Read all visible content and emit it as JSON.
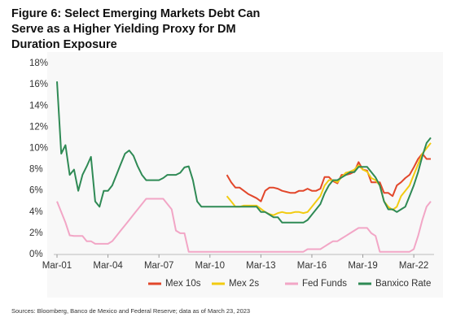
{
  "chart_data": {
    "type": "line",
    "title": "Figure 6: Select Emerging Markets Debt Can Serve as a Higher Yielding Proxy for DM Duration Exposure",
    "source": "Sources: Bloomberg, Banco de Mexico and Federal Reserve; data as of March 23, 2023",
    "x": [
      "Mar-01",
      "Jun-01",
      "Sep-01",
      "Dec-01",
      "Mar-02",
      "Jun-02",
      "Sep-02",
      "Dec-02",
      "Mar-03",
      "Jun-03",
      "Sep-03",
      "Dec-03",
      "Mar-04",
      "Jun-04",
      "Sep-04",
      "Dec-04",
      "Mar-05",
      "Jun-05",
      "Sep-05",
      "Dec-05",
      "Mar-06",
      "Jun-06",
      "Sep-06",
      "Dec-06",
      "Mar-07",
      "Jun-07",
      "Sep-07",
      "Dec-07",
      "Mar-08",
      "Jun-08",
      "Sep-08",
      "Dec-08",
      "Mar-09",
      "Jun-09",
      "Sep-09",
      "Dec-09",
      "Mar-10",
      "Jun-10",
      "Sep-10",
      "Dec-10",
      "Mar-11",
      "Jun-11",
      "Sep-11",
      "Dec-11",
      "Mar-12",
      "Jun-12",
      "Sep-12",
      "Dec-12",
      "Mar-13",
      "Jun-13",
      "Sep-13",
      "Dec-13",
      "Mar-14",
      "Jun-14",
      "Sep-14",
      "Dec-14",
      "Mar-15",
      "Jun-15",
      "Sep-15",
      "Dec-15",
      "Mar-16",
      "Jun-16",
      "Sep-16",
      "Dec-16",
      "Mar-17",
      "Jun-17",
      "Sep-17",
      "Dec-17",
      "Mar-18",
      "Jun-18",
      "Sep-18",
      "Dec-18",
      "Mar-19",
      "Jun-19",
      "Sep-19",
      "Dec-19",
      "Mar-20",
      "Jun-20",
      "Sep-20",
      "Dec-20",
      "Mar-21",
      "Jun-21",
      "Sep-21",
      "Dec-21",
      "Mar-22",
      "Jun-22",
      "Sep-22",
      "Dec-22",
      "Mar-23"
    ],
    "xticks": [
      "Mar-01",
      "Mar-04",
      "Mar-07",
      "Mar-10",
      "Mar-13",
      "Mar-16",
      "Mar-19",
      "Mar-22"
    ],
    "ylim": [
      0,
      18
    ],
    "yticks": [
      {
        "value": 0,
        "label": "0%"
      },
      {
        "value": 2,
        "label": "2%"
      },
      {
        "value": 4,
        "label": "4%"
      },
      {
        "value": 6,
        "label": "6%"
      },
      {
        "value": 8,
        "label": "8%"
      },
      {
        "value": 10,
        "label": "10%"
      },
      {
        "value": 12,
        "label": "12%"
      },
      {
        "value": 14,
        "label": "14%"
      },
      {
        "value": 16,
        "label": "16%"
      },
      {
        "value": 18,
        "label": "18%"
      }
    ],
    "grid": false,
    "legend": "bottom",
    "series": [
      {
        "name": "Mex 10s",
        "color": "#e2472b",
        "values": [
          null,
          null,
          null,
          null,
          null,
          null,
          null,
          null,
          null,
          null,
          null,
          null,
          null,
          null,
          null,
          null,
          null,
          null,
          null,
          null,
          null,
          null,
          null,
          null,
          null,
          null,
          null,
          null,
          null,
          null,
          null,
          null,
          null,
          null,
          null,
          null,
          null,
          null,
          null,
          null,
          7.5,
          6.8,
          6.3,
          6.3,
          6.0,
          5.7,
          5.5,
          5.3,
          5.0,
          6.0,
          6.3,
          6.3,
          6.2,
          6.0,
          5.9,
          5.8,
          5.8,
          6.0,
          6.0,
          6.2,
          6.0,
          6.0,
          6.2,
          7.3,
          7.3,
          6.9,
          6.7,
          7.5,
          7.5,
          7.6,
          7.8,
          8.7,
          8.0,
          7.9,
          6.8,
          6.8,
          6.8,
          5.8,
          5.8,
          5.5,
          6.5,
          6.8,
          7.2,
          7.5,
          8.2,
          9.0,
          9.5,
          9.0,
          9.0
        ]
      },
      {
        "name": "Mex 2s",
        "color": "#f2cb11",
        "values": [
          null,
          null,
          null,
          null,
          null,
          null,
          null,
          null,
          null,
          null,
          null,
          null,
          null,
          null,
          null,
          null,
          null,
          null,
          null,
          null,
          null,
          null,
          null,
          null,
          null,
          null,
          null,
          null,
          null,
          null,
          null,
          null,
          null,
          null,
          null,
          null,
          null,
          null,
          null,
          null,
          5.5,
          5.0,
          4.5,
          4.5,
          4.6,
          4.6,
          4.6,
          4.6,
          4.3,
          4.0,
          3.8,
          3.7,
          3.9,
          4.0,
          3.9,
          3.9,
          4.0,
          4.0,
          3.9,
          4.0,
          4.5,
          5.0,
          5.5,
          6.5,
          7.0,
          7.0,
          6.8,
          7.3,
          7.7,
          7.8,
          8.0,
          8.4,
          8.0,
          7.8,
          7.2,
          7.0,
          6.5,
          5.0,
          4.5,
          4.2,
          4.5,
          5.5,
          6.0,
          6.5,
          7.5,
          8.5,
          9.5,
          10.0,
          10.5
        ]
      },
      {
        "name": "Fed Funds",
        "color": "#f2a6c6",
        "values": [
          5.0,
          4.0,
          3.0,
          1.8,
          1.75,
          1.75,
          1.75,
          1.25,
          1.25,
          1.0,
          1.0,
          1.0,
          1.0,
          1.25,
          1.75,
          2.25,
          2.75,
          3.25,
          3.75,
          4.25,
          4.75,
          5.25,
          5.25,
          5.25,
          5.25,
          5.25,
          4.75,
          4.25,
          2.25,
          2.0,
          2.0,
          0.25,
          0.25,
          0.25,
          0.25,
          0.25,
          0.25,
          0.25,
          0.25,
          0.25,
          0.25,
          0.25,
          0.25,
          0.25,
          0.25,
          0.25,
          0.25,
          0.25,
          0.25,
          0.25,
          0.25,
          0.25,
          0.25,
          0.25,
          0.25,
          0.25,
          0.25,
          0.25,
          0.25,
          0.5,
          0.5,
          0.5,
          0.5,
          0.75,
          1.0,
          1.25,
          1.25,
          1.5,
          1.75,
          2.0,
          2.25,
          2.5,
          2.5,
          2.5,
          2.0,
          1.75,
          0.25,
          0.25,
          0.25,
          0.25,
          0.25,
          0.25,
          0.25,
          0.25,
          0.5,
          1.75,
          3.25,
          4.5,
          5.0
        ]
      },
      {
        "name": "Banxico Rate",
        "color": "#2f8a55",
        "values": [
          16.3,
          9.5,
          10.3,
          7.5,
          8.0,
          6.0,
          7.5,
          8.3,
          9.2,
          5.0,
          4.5,
          6.0,
          6.0,
          6.5,
          7.5,
          8.5,
          9.5,
          9.8,
          9.3,
          8.3,
          7.5,
          7.0,
          7.0,
          7.0,
          7.0,
          7.2,
          7.5,
          7.5,
          7.5,
          7.7,
          8.2,
          8.3,
          7.0,
          5.0,
          4.5,
          4.5,
          4.5,
          4.5,
          4.5,
          4.5,
          4.5,
          4.5,
          4.5,
          4.5,
          4.5,
          4.5,
          4.5,
          4.5,
          4.0,
          4.0,
          3.75,
          3.5,
          3.5,
          3.0,
          3.0,
          3.0,
          3.0,
          3.0,
          3.0,
          3.25,
          3.75,
          4.25,
          4.75,
          5.75,
          6.5,
          7.0,
          7.0,
          7.25,
          7.5,
          7.75,
          7.75,
          8.25,
          8.25,
          8.25,
          7.75,
          7.25,
          6.5,
          5.0,
          4.25,
          4.25,
          4.0,
          4.25,
          4.5,
          5.5,
          6.5,
          7.75,
          9.25,
          10.5,
          11.0
        ]
      }
    ]
  }
}
